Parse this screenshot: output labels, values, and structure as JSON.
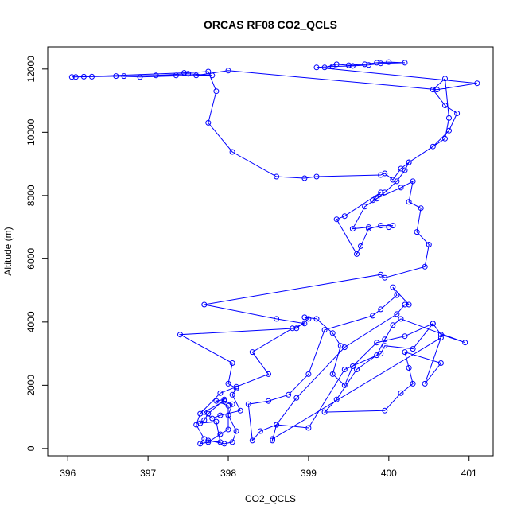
{
  "chart_data": {
    "type": "scatter",
    "title": "ORCAS RF08 CO2_QCLS",
    "xlabel": "CO2_QCLS",
    "ylabel": "Altitude (m)",
    "xlim": [
      395.75,
      401.3
    ],
    "ylim": [
      -230,
      12700
    ],
    "xticks": [
      396,
      397,
      398,
      399,
      400,
      401
    ],
    "yticks": [
      0,
      2000,
      4000,
      6000,
      8000,
      10000,
      12000
    ],
    "grid": false,
    "legend": "none",
    "series_color": "#0000ff",
    "markers": "open-circles",
    "connected": true,
    "points": [
      [
        399.2,
        12050
      ],
      [
        399.35,
        12150
      ],
      [
        399.5,
        12120
      ],
      [
        399.7,
        12150
      ],
      [
        399.85,
        12200
      ],
      [
        400.0,
        12220
      ],
      [
        400.2,
        12200
      ],
      [
        399.9,
        12180
      ],
      [
        399.75,
        12130
      ],
      [
        399.55,
        12100
      ],
      [
        399.3,
        12080
      ],
      [
        399.1,
        12050
      ],
      [
        401.1,
        11550
      ],
      [
        400.6,
        11350
      ],
      [
        398.0,
        11950
      ],
      [
        397.6,
        11800
      ],
      [
        396.9,
        11750
      ],
      [
        396.6,
        11780
      ],
      [
        396.3,
        11760
      ],
      [
        396.05,
        11750
      ],
      [
        396.7,
        11780
      ],
      [
        397.1,
        11800
      ],
      [
        397.5,
        11850
      ],
      [
        397.8,
        11800
      ],
      [
        397.35,
        11800
      ],
      [
        396.2,
        11760
      ],
      [
        396.1,
        11750
      ],
      [
        397.45,
        11880
      ],
      [
        397.75,
        11920
      ],
      [
        397.85,
        11300
      ],
      [
        397.75,
        10300
      ],
      [
        398.05,
        9380
      ],
      [
        398.6,
        8600
      ],
      [
        398.95,
        8550
      ],
      [
        399.1,
        8600
      ],
      [
        399.9,
        8650
      ],
      [
        399.95,
        8700
      ],
      [
        400.05,
        8500
      ],
      [
        400.15,
        8850
      ],
      [
        400.25,
        9050
      ],
      [
        400.55,
        9550
      ],
      [
        400.75,
        10050
      ],
      [
        400.85,
        10600
      ],
      [
        400.7,
        10850
      ],
      [
        400.55,
        11350
      ],
      [
        400.7,
        11700
      ],
      [
        400.75,
        10450
      ],
      [
        400.7,
        9800
      ],
      [
        400.25,
        9050
      ],
      [
        400.2,
        8800
      ],
      [
        400.1,
        8450
      ],
      [
        399.95,
        8100
      ],
      [
        399.85,
        7900
      ],
      [
        399.7,
        7650
      ],
      [
        399.55,
        6950
      ],
      [
        399.75,
        7000
      ],
      [
        400.0,
        7000
      ],
      [
        400.05,
        7050
      ],
      [
        399.9,
        7050
      ],
      [
        399.75,
        6950
      ],
      [
        399.65,
        6400
      ],
      [
        399.6,
        6150
      ],
      [
        399.35,
        7250
      ],
      [
        399.45,
        7350
      ],
      [
        399.9,
        8100
      ],
      [
        399.8,
        7850
      ],
      [
        400.15,
        8250
      ],
      [
        400.3,
        8450
      ],
      [
        400.25,
        7800
      ],
      [
        400.4,
        7600
      ],
      [
        400.35,
        6850
      ],
      [
        400.5,
        6450
      ],
      [
        400.45,
        5750
      ],
      [
        399.95,
        5400
      ],
      [
        399.9,
        5500
      ],
      [
        397.7,
        4550
      ],
      [
        398.6,
        4100
      ],
      [
        398.95,
        3950
      ],
      [
        398.8,
        3800
      ],
      [
        398.3,
        3050
      ],
      [
        398.5,
        2350
      ],
      [
        398.1,
        1950
      ],
      [
        397.9,
        1750
      ],
      [
        397.65,
        1100
      ],
      [
        397.6,
        750
      ],
      [
        397.7,
        300
      ],
      [
        397.65,
        150
      ],
      [
        397.75,
        200
      ],
      [
        397.9,
        450
      ],
      [
        398.0,
        600
      ],
      [
        398.0,
        1350
      ],
      [
        397.85,
        1500
      ],
      [
        397.95,
        1550
      ],
      [
        397.75,
        1100
      ],
      [
        397.7,
        900
      ],
      [
        397.65,
        800
      ],
      [
        397.85,
        850
      ],
      [
        397.9,
        200
      ],
      [
        397.75,
        250
      ],
      [
        397.95,
        150
      ],
      [
        398.05,
        200
      ],
      [
        398.1,
        550
      ],
      [
        398.0,
        1050
      ],
      [
        398.05,
        1400
      ],
      [
        397.95,
        1500
      ],
      [
        397.7,
        1150
      ],
      [
        397.8,
        950
      ],
      [
        397.9,
        1050
      ],
      [
        398.15,
        1200
      ],
      [
        398.05,
        1700
      ],
      [
        398.1,
        1900
      ],
      [
        398.0,
        2050
      ],
      [
        398.05,
        2700
      ],
      [
        397.4,
        3600
      ],
      [
        398.85,
        3800
      ],
      [
        399.0,
        4100
      ],
      [
        398.95,
        4150
      ],
      [
        399.1,
        4100
      ],
      [
        399.3,
        3650
      ],
      [
        399.4,
        3250
      ],
      [
        399.3,
        2350
      ],
      [
        399.45,
        2000
      ],
      [
        399.55,
        2600
      ],
      [
        399.85,
        3350
      ],
      [
        400.2,
        3550
      ],
      [
        400.55,
        3950
      ],
      [
        400.65,
        3600
      ],
      [
        400.95,
        3350
      ],
      [
        400.15,
        4100
      ],
      [
        400.05,
        3900
      ],
      [
        399.95,
        3450
      ],
      [
        399.85,
        2950
      ],
      [
        399.6,
        2500
      ],
      [
        399.35,
        1550
      ],
      [
        399.2,
        1150
      ],
      [
        399.95,
        1200
      ],
      [
        400.15,
        1750
      ],
      [
        400.3,
        2050
      ],
      [
        400.25,
        2550
      ],
      [
        400.2,
        3050
      ],
      [
        400.65,
        2700
      ],
      [
        400.45,
        2050
      ],
      [
        400.65,
        3500
      ],
      [
        398.55,
        300
      ],
      [
        398.55,
        250
      ],
      [
        398.6,
        750
      ],
      [
        398.85,
        1600
      ],
      [
        399.45,
        3200
      ],
      [
        400.1,
        4250
      ],
      [
        400.2,
        4550
      ],
      [
        400.25,
        4550
      ],
      [
        400.05,
        5100
      ],
      [
        400.1,
        4850
      ],
      [
        399.9,
        4400
      ],
      [
        399.8,
        4200
      ],
      [
        399.2,
        3750
      ],
      [
        399.0,
        2350
      ],
      [
        398.75,
        1700
      ],
      [
        398.5,
        1500
      ],
      [
        398.25,
        1400
      ],
      [
        398.3,
        250
      ],
      [
        398.4,
        550
      ],
      [
        398.6,
        750
      ],
      [
        399.0,
        650
      ],
      [
        399.45,
        2500
      ],
      [
        399.9,
        3000
      ],
      [
        399.95,
        3250
      ],
      [
        400.3,
        3150
      ],
      [
        400.55,
        3950
      ]
    ]
  }
}
